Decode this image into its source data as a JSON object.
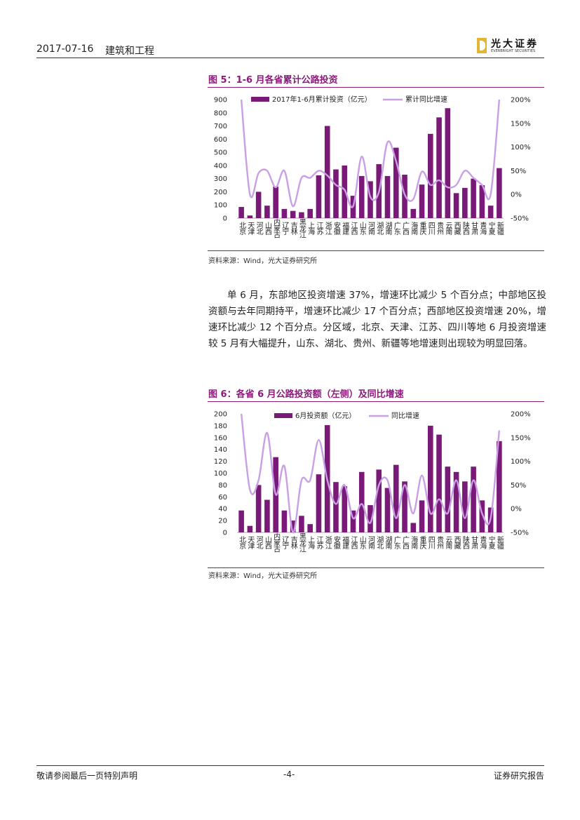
{
  "header": {
    "date": "2017-07-16",
    "topic": "建筑和工程",
    "logo_cn": "光大证券",
    "logo_en": "EVERBRIGHT SECURITIES"
  },
  "figure5": {
    "title": "图 5：1-6 月各省累计公路投资",
    "source": "资料来源：Wind，光大证券研究所"
  },
  "paragraph": "单 6 月，东部地区投资增速 37%，增速环比减少 5 个百分点；中部地区投资额与去年同期持平，增速环比减少 17 个百分点；西部地区投资增速 20%，增速环比减少 12 个百分点。分区域，北京、天津、江苏、四川等地 6 月投资增速较 5 月有大幅提升，山东、湖北、贵州、新疆等地增速则出现较为明显回落。",
  "figure6": {
    "title": "图 6：各省 6 月公路投资额（左侧）及同比增速",
    "source": "资料来源：Wind，光大证券研究所"
  },
  "footer": {
    "left": "敬请参阅最后一页特别声明",
    "center": "-4-",
    "right": "证券研究报告"
  },
  "colors": {
    "bar": "#7a1a78",
    "line": "#c9a0e6",
    "accent": "#8b1a7a"
  },
  "chart_data": [
    {
      "type": "bar",
      "categories": [
        "北京",
        "天津",
        "河北",
        "山西",
        "内蒙古",
        "辽宁",
        "吉林",
        "黑龙江",
        "上海",
        "江苏",
        "浙江",
        "安徽",
        "福建",
        "江西",
        "山东",
        "河南",
        "湖北",
        "湖南",
        "广东",
        "广西",
        "海南",
        "重庆",
        "四川",
        "贵州",
        "云南",
        "西藏",
        "陕西",
        "甘肃",
        "青海",
        "宁夏",
        "新疆"
      ],
      "series": [
        {
          "name": "2017年1-6月累计投资（亿元）",
          "type": "bar",
          "axis": "left",
          "values": [
            85,
            20,
            200,
            95,
            240,
            70,
            55,
            45,
            70,
            325,
            700,
            370,
            400,
            170,
            320,
            280,
            410,
            320,
            535,
            330,
            70,
            255,
            640,
            765,
            835,
            190,
            230,
            300,
            250,
            95,
            380
          ]
        },
        {
          "name": "累计同比增速",
          "type": "line",
          "axis": "right",
          "values": [
            200,
            0,
            45,
            50,
            15,
            50,
            -25,
            35,
            35,
            50,
            40,
            20,
            10,
            -25,
            80,
            -5,
            5,
            110,
            70,
            0,
            -10,
            48,
            20,
            30,
            15,
            20,
            50,
            35,
            20,
            0,
            200
          ]
        }
      ],
      "ylim_left": [
        0,
        900
      ],
      "yticks_left": [
        0,
        100,
        200,
        300,
        400,
        500,
        600,
        700,
        800,
        900
      ],
      "ylim_right": [
        -50,
        200
      ],
      "yticks_right": [
        "-50%",
        "0%",
        "50%",
        "100%",
        "150%",
        "200%"
      ],
      "legend_position": "top"
    },
    {
      "type": "bar",
      "categories": [
        "北京",
        "天津",
        "河北",
        "山西",
        "内蒙古",
        "辽宁",
        "吉林",
        "黑龙江",
        "上海",
        "江苏",
        "浙江",
        "安徽",
        "福建",
        "江西",
        "山东",
        "河南",
        "湖北",
        "湖南",
        "广东",
        "广西",
        "海南",
        "重庆",
        "四川",
        "贵州",
        "云南",
        "西藏",
        "陕西",
        "甘肃",
        "青海",
        "宁夏",
        "新疆"
      ],
      "series": [
        {
          "name": "6月投资额（亿元）",
          "type": "bar",
          "axis": "left",
          "values": [
            37,
            11,
            80,
            55,
            127,
            37,
            20,
            28,
            14,
            98,
            181,
            85,
            78,
            37,
            102,
            46,
            106,
            75,
            114,
            86,
            16,
            54,
            180,
            165,
            111,
            102,
            86,
            111,
            54,
            42,
            154
          ]
        },
        {
          "name": "同比增速",
          "type": "line",
          "axis": "right",
          "values": [
            200,
            40,
            60,
            160,
            30,
            90,
            -50,
            60,
            60,
            145,
            60,
            10,
            50,
            -20,
            10,
            -30,
            50,
            60,
            -20,
            50,
            -10,
            70,
            -10,
            20,
            -10,
            60,
            -20,
            60,
            -10,
            -20,
            165
          ]
        }
      ],
      "ylim_left": [
        0,
        200
      ],
      "yticks_left": [
        0,
        20,
        40,
        60,
        80,
        100,
        120,
        140,
        160,
        180,
        200
      ],
      "ylim_right": [
        -50,
        200
      ],
      "yticks_right": [
        "-50%",
        "0%",
        "50%",
        "100%",
        "150%",
        "200%"
      ],
      "legend_position": "top"
    }
  ]
}
